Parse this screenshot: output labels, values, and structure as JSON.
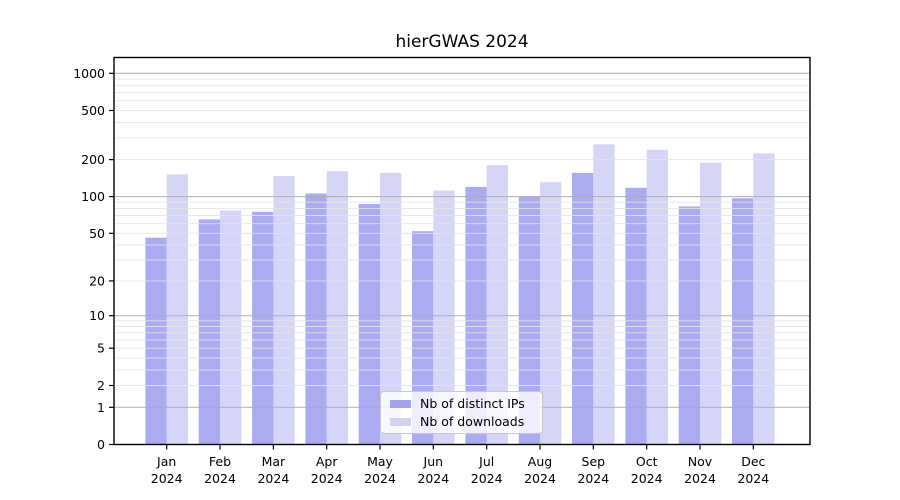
{
  "chart_data": {
    "type": "bar",
    "title": "hierGWAS 2024",
    "categories": [
      "Jan",
      "Feb",
      "Mar",
      "Apr",
      "May",
      "Jun",
      "Jul",
      "Aug",
      "Sep",
      "Oct",
      "Nov",
      "Dec"
    ],
    "category_year": "2024",
    "series": [
      {
        "name": "Nb of distinct IPs",
        "color": "#9999ee",
        "values": [
          46,
          65,
          75,
          106,
          87,
          52,
          120,
          100,
          156,
          118,
          83,
          97
        ]
      },
      {
        "name": "Nb of downloads",
        "color": "#ccccf5",
        "values": [
          152,
          77,
          147,
          161,
          156,
          112,
          180,
          131,
          266,
          240,
          188,
          225
        ]
      }
    ],
    "yticks": [
      0,
      1,
      2,
      5,
      10,
      20,
      50,
      100,
      200,
      500,
      1000
    ],
    "yscale": "log1p",
    "ylim": [
      0,
      1000
    ],
    "grid": "on",
    "legend_position": "lower center",
    "colors": {
      "major_grid": "#ababab",
      "minor_grid": "#e4e4e4",
      "axis": "#000000",
      "text": "#000000"
    }
  }
}
